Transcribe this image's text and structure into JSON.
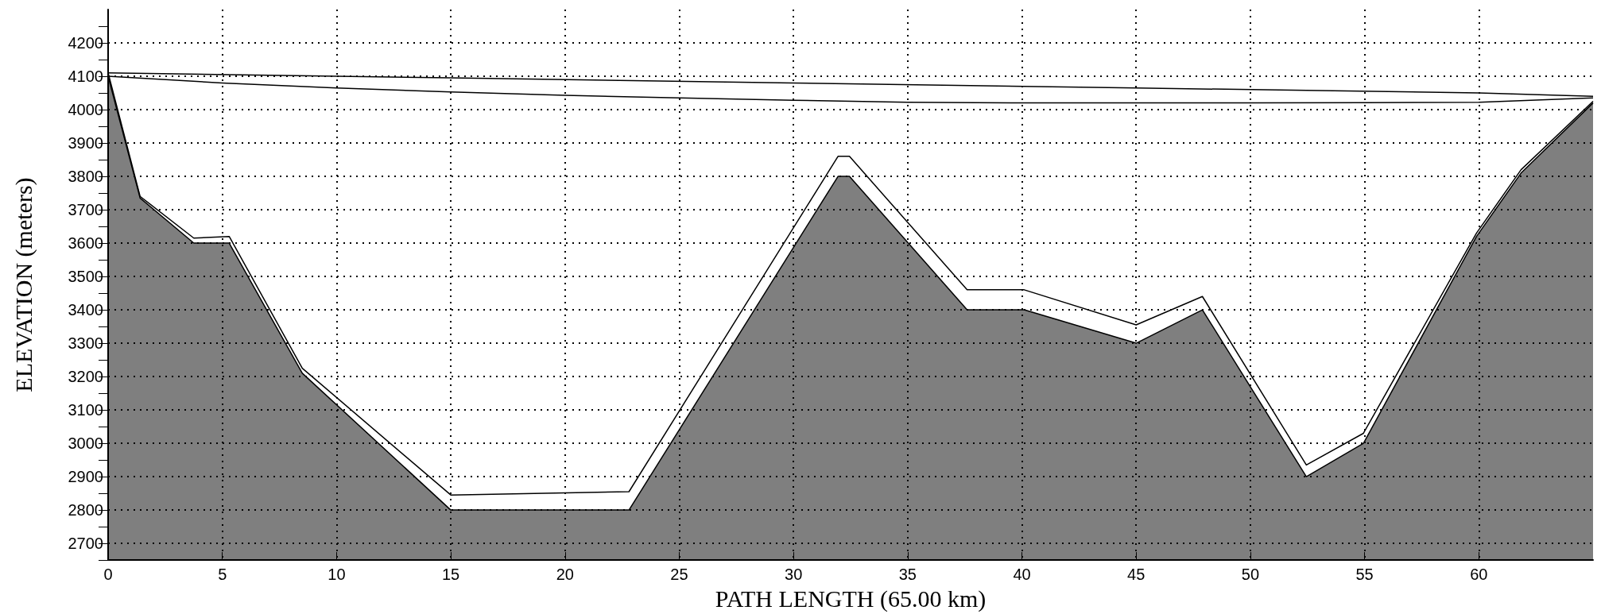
{
  "chart_data": {
    "type": "line",
    "xlabel": "PATH LENGTH (65.00 km)",
    "ylabel": "ELEVATION (meters)",
    "xlim": [
      0,
      65
    ],
    "xticks": [
      0,
      5,
      10,
      15,
      20,
      25,
      30,
      35,
      40,
      45,
      50,
      55,
      60
    ],
    "ylim": [
      2650,
      4300
    ],
    "yticks": [
      {
        "value": 2650,
        "label": null
      },
      2700,
      {
        "value": 2750,
        "label": null
      },
      2800,
      {
        "value": 2850,
        "label": null
      },
      2900,
      {
        "value": 2950,
        "label": null
      },
      3000,
      {
        "value": 3050,
        "label": null
      },
      3100,
      {
        "value": 3150,
        "label": null
      },
      3200,
      {
        "value": 3250,
        "label": null
      },
      3300,
      {
        "value": 3350,
        "label": null
      },
      3400,
      {
        "value": 3450,
        "label": null
      },
      3500,
      {
        "value": 3550,
        "label": null
      },
      3600,
      {
        "value": 3650,
        "label": null
      },
      3700,
      {
        "value": 3750,
        "label": null
      },
      3800,
      {
        "value": 3850,
        "label": null
      },
      3900,
      {
        "value": 3950,
        "label": null
      },
      4000,
      {
        "value": 4050,
        "label": null
      },
      4100,
      {
        "value": 4150,
        "label": null
      },
      4200,
      {
        "value": 4250,
        "label": null
      }
    ],
    "grid": true,
    "marker": "none",
    "series": [
      {
        "type": "area",
        "color": "#000000",
        "x": [
          0,
          1.4,
          3.75,
          5.3,
          8.5,
          15,
          22.8,
          31.95,
          32.45,
          37.6,
          40.1,
          45,
          47.9,
          52.45,
          54.95,
          59.9,
          61.85,
          65
        ],
        "values": [
          4100,
          3735,
          3600,
          3600,
          3210,
          2800,
          2800,
          3800,
          3800,
          3400,
          3400,
          3300,
          3400,
          2900,
          3000,
          3620,
          3810,
          4020
        ]
      },
      {
        "color": "#000000",
        "x": [
          0,
          1.4,
          3.75,
          5.3,
          8.5,
          15,
          22.8,
          31.95,
          32.45,
          37.6,
          40.1,
          45,
          47.9,
          52.45,
          54.95,
          59.9,
          61.85,
          65
        ],
        "values": [
          4110,
          3740,
          3615,
          3620,
          3225,
          2845,
          2855,
          3860,
          3860,
          3460,
          3460,
          3355,
          3440,
          2935,
          3030,
          3630,
          3820,
          4025
        ]
      },
      {
        "color": "#000000",
        "x": [
          0,
          15,
          30,
          45,
          60,
          65
        ],
        "values": [
          4110,
          4095,
          4080,
          4065,
          4050,
          4040
        ]
      },
      {
        "color": "#000000",
        "x": [
          0,
          5,
          10,
          15,
          20,
          25,
          30,
          35,
          40,
          45,
          50,
          55,
          60,
          65
        ],
        "values": [
          4100,
          4080,
          4065,
          4053,
          4043,
          4035,
          4028,
          4022,
          4020,
          4020,
          4020,
          4021,
          4022,
          4035
        ]
      }
    ]
  }
}
